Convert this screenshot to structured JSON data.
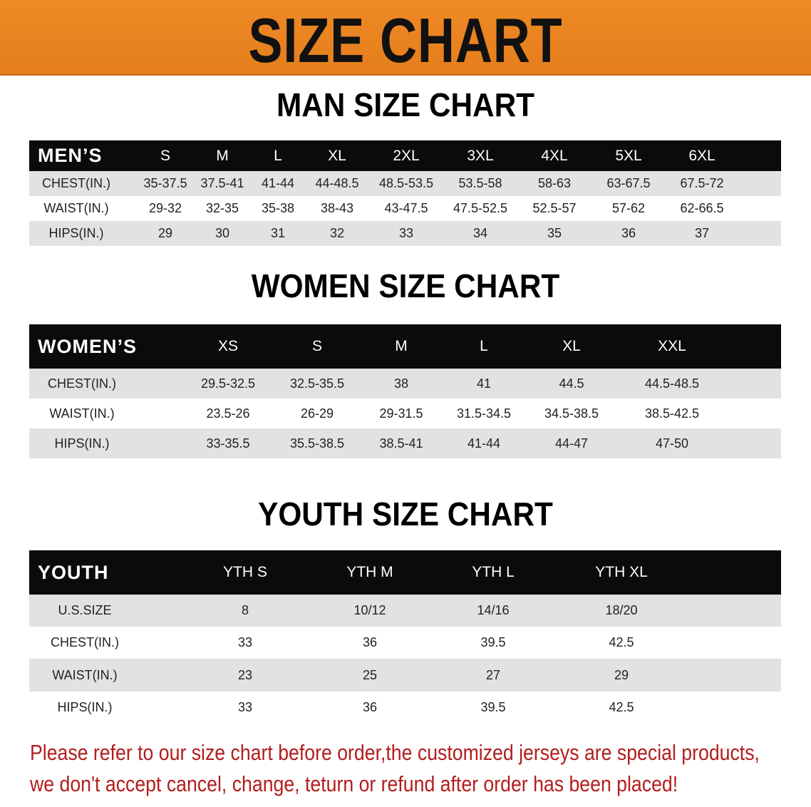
{
  "banner": {
    "title": "SIZE CHART",
    "color": "#e98421"
  },
  "men": {
    "title": "MAN SIZE CHART",
    "headers": [
      "MEN’S",
      "S",
      "M",
      "L",
      "XL",
      "2XL",
      "3XL",
      "4XL",
      "5XL",
      "6XL"
    ],
    "rows": [
      [
        "CHEST(IN.)",
        "35-37.5",
        "37.5-41",
        "41-44",
        "44-48.5",
        "48.5-53.5",
        "53.5-58",
        "58-63",
        "63-67.5",
        "67.5-72"
      ],
      [
        "WAIST(IN.)",
        "29-32",
        "32-35",
        "35-38",
        "38-43",
        "43-47.5",
        "47.5-52.5",
        "52.5-57",
        "57-62",
        "62-66.5"
      ],
      [
        "HIPS(IN.)",
        "29",
        "30",
        "31",
        "32",
        "33",
        "34",
        "35",
        "36",
        "37"
      ]
    ]
  },
  "women": {
    "title": "WOMEN SIZE CHART",
    "headers": [
      "WOMEN’S",
      "XS",
      "S",
      "M",
      "L",
      "XL",
      "XXL"
    ],
    "rows": [
      [
        "CHEST(IN.)",
        "29.5-32.5",
        "32.5-35.5",
        "38",
        "41",
        "44.5",
        "44.5-48.5"
      ],
      [
        "WAIST(IN.)",
        "23.5-26",
        "26-29",
        "29-31.5",
        "31.5-34.5",
        "34.5-38.5",
        "38.5-42.5"
      ],
      [
        "HIPS(IN.)",
        "33-35.5",
        "35.5-38.5",
        "38.5-41",
        "41-44",
        "44-47",
        "47-50"
      ]
    ]
  },
  "youth": {
    "title": "YOUTH SIZE CHART",
    "headers": [
      "YOUTH",
      "YTH S",
      "YTH M",
      "YTH L",
      "YTH XL"
    ],
    "rows": [
      [
        "U.S.SIZE",
        "8",
        "10/12",
        "14/16",
        "18/20"
      ],
      [
        "CHEST(IN.)",
        "33",
        "36",
        "39.5",
        "42.5"
      ],
      [
        "WAIST(IN.)",
        "23",
        "25",
        "27",
        "29"
      ],
      [
        "HIPS(IN.)",
        "33",
        "36",
        "39.5",
        "42.5"
      ]
    ]
  },
  "note": {
    "line1": "Please refer to our size chart before order,the customized jerseys are special products,",
    "line2": "we don't accept cancel, change, teturn or refund after order has been placed!",
    "color": "#b31d1d"
  }
}
